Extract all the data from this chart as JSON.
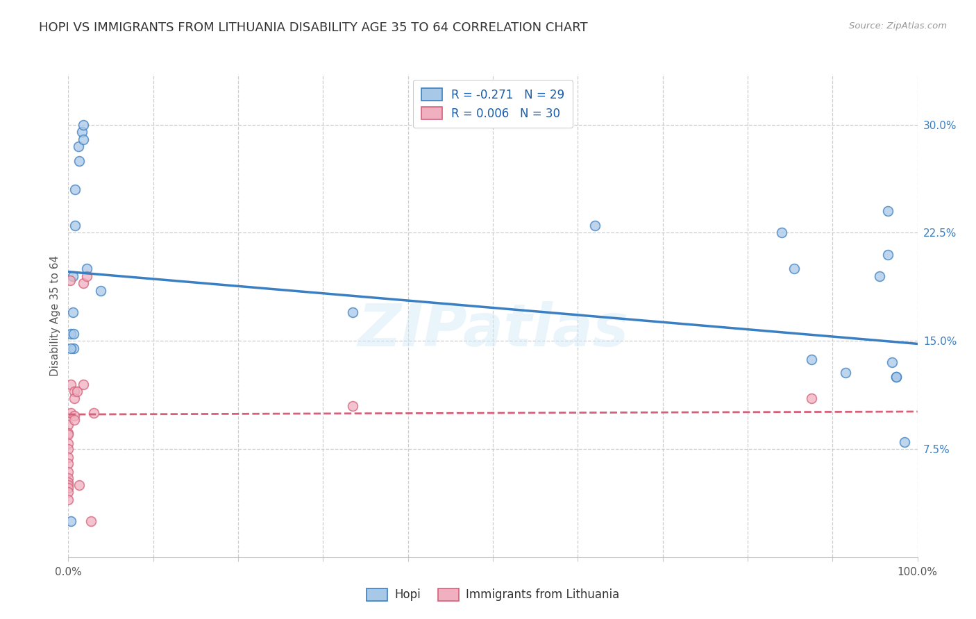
{
  "title": "HOPI VS IMMIGRANTS FROM LITHUANIA DISABILITY AGE 35 TO 64 CORRELATION CHART",
  "source": "Source: ZipAtlas.com",
  "ylabel": "Disability Age 35 to 64",
  "y_ticks": [
    0.075,
    0.15,
    0.225,
    0.3
  ],
  "y_tick_labels": [
    "7.5%",
    "15.0%",
    "22.5%",
    "30.0%"
  ],
  "xlim": [
    0.0,
    1.0
  ],
  "ylim": [
    0.0,
    0.335
  ],
  "legend_entries": [
    {
      "label": "R = -0.271   N = 29",
      "color": "#aec6e8"
    },
    {
      "label": "R = 0.006   N = 30",
      "color": "#f4b8c1"
    }
  ],
  "legend_bottom": [
    "Hopi",
    "Immigrants from Lithuania"
  ],
  "watermark": "ZIPatlas",
  "hopi_scatter_x": [
    0.005,
    0.012,
    0.016,
    0.018,
    0.018,
    0.013,
    0.008,
    0.008,
    0.022,
    0.038,
    0.005,
    0.003,
    0.006,
    0.006,
    0.003,
    0.335,
    0.62,
    0.84,
    0.855,
    0.875,
    0.915,
    0.955,
    0.965,
    0.965,
    0.97,
    0.975,
    0.975,
    0.985,
    0.003
  ],
  "hopi_scatter_y": [
    0.195,
    0.285,
    0.295,
    0.3,
    0.29,
    0.275,
    0.255,
    0.23,
    0.2,
    0.185,
    0.17,
    0.155,
    0.155,
    0.145,
    0.145,
    0.17,
    0.23,
    0.225,
    0.2,
    0.137,
    0.128,
    0.195,
    0.21,
    0.24,
    0.135,
    0.125,
    0.125,
    0.08,
    0.025
  ],
  "lithuania_scatter_x": [
    0.0,
    0.0,
    0.0,
    0.0,
    0.0,
    0.0,
    0.0,
    0.0,
    0.0,
    0.0,
    0.0,
    0.0,
    0.0,
    0.0,
    0.003,
    0.003,
    0.007,
    0.007,
    0.007,
    0.007,
    0.01,
    0.013,
    0.018,
    0.018,
    0.022,
    0.027,
    0.03,
    0.335,
    0.002,
    0.875
  ],
  "lithuania_scatter_y": [
    0.092,
    0.086,
    0.085,
    0.079,
    0.075,
    0.069,
    0.065,
    0.059,
    0.055,
    0.052,
    0.05,
    0.048,
    0.045,
    0.04,
    0.12,
    0.1,
    0.115,
    0.11,
    0.098,
    0.095,
    0.115,
    0.05,
    0.19,
    0.12,
    0.195,
    0.025,
    0.1,
    0.105,
    0.192,
    0.11
  ],
  "hopi_line_x": [
    0.0,
    1.0
  ],
  "hopi_line_y": [
    0.198,
    0.148
  ],
  "lithuania_line_x": [
    0.0,
    1.0
  ],
  "lithuania_line_y": [
    0.099,
    0.101
  ],
  "hopi_color": "#3a7fc1",
  "hopi_scatter_color": "#a8c8e8",
  "lithuania_color": "#d4607a",
  "lithuania_scatter_color": "#f0b0bf",
  "grid_color": "#c8c8c8",
  "background_color": "#ffffff",
  "title_fontsize": 13,
  "axis_label_fontsize": 11,
  "tick_fontsize": 11,
  "scatter_size": 100,
  "scatter_alpha": 0.75,
  "legend_r_color": "#1a5ca8"
}
